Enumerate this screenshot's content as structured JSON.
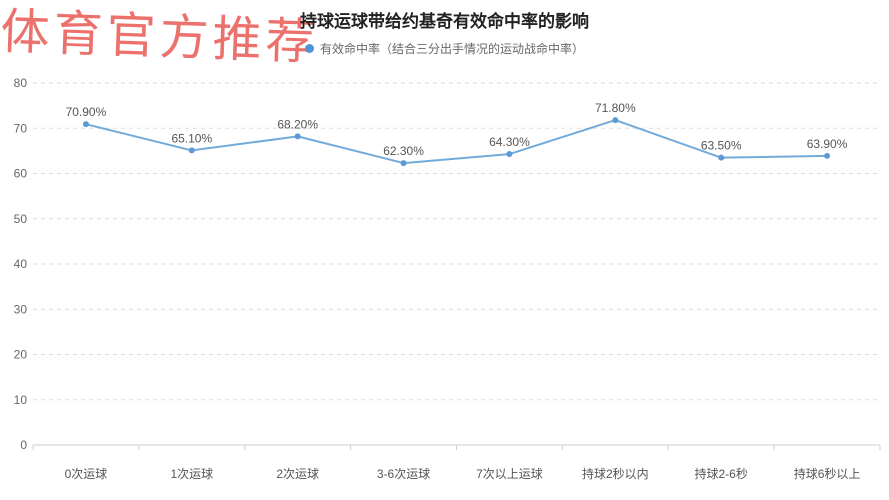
{
  "watermark": {
    "text": "体育官方推荐",
    "color": "#e8534e"
  },
  "header": {
    "title": "持球运球带给约基奇有效命中率的影响"
  },
  "legend": {
    "label": "有效命中率（结合三分出手情况的运动战命中率）",
    "marker_color": "#4e94d4"
  },
  "chart_data": {
    "type": "line",
    "title": "持球运球带给约基奇有效命中率的影响",
    "categories": [
      "0次运球",
      "1次运球",
      "2次运球",
      "3-6次运球",
      "7次以上运球",
      "持球2秒以内",
      "持球2-6秒",
      "持球6秒以上"
    ],
    "series": [
      {
        "name": "有效命中率（结合三分出手情况的运动战命中率）",
        "values": [
          70.9,
          65.1,
          68.2,
          62.3,
          64.3,
          71.8,
          63.5,
          63.9
        ],
        "point_labels": [
          "70.90%",
          "65.10%",
          "68.20%",
          "62.30%",
          "64.30%",
          "71.80%",
          "63.50%",
          "63.90%"
        ],
        "line_color": "#72abd9",
        "marker_color": "#5b9bd5"
      }
    ],
    "xlabel": "",
    "ylabel": "",
    "ylim": [
      0,
      80
    ],
    "yticks": [
      0,
      10,
      20,
      30,
      40,
      50,
      60,
      70,
      80
    ],
    "grid": "horizontal-dashed",
    "grid_color": "#dddddd",
    "axis_color": "#cccccc",
    "axis_tick_label_color": "#666666",
    "category_label_color": "#555555",
    "data_label_color": "#555555",
    "legend_position": "top-center"
  }
}
